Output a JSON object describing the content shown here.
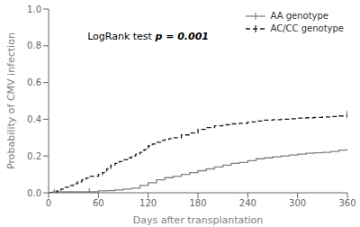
{
  "chart_data": {
    "type": "line",
    "xlabel": "Days after transplantation",
    "ylabel": "Probability of CMV infection",
    "xlim": [
      0,
      360
    ],
    "ylim": [
      0,
      1.0
    ],
    "xticks": [
      0,
      60,
      120,
      180,
      240,
      300,
      360
    ],
    "yticks": [
      {
        "value": 0,
        "label": "0.0"
      },
      0.2,
      0.4,
      0.6,
      0.8,
      {
        "value": 1,
        "label": "1.0"
      }
    ],
    "legend": "upper right",
    "annotations": [
      "LogRank test",
      "p = 0.001"
    ],
    "series": [
      {
        "name": "AA genotype",
        "color": "#808080",
        "line_style": "solid",
        "marker": "vline",
        "x": [
          0,
          5,
          10,
          15,
          20,
          25,
          30,
          35,
          40,
          45,
          50,
          55,
          60,
          65,
          70,
          80,
          90,
          100,
          110,
          120,
          130,
          140,
          150,
          160,
          170,
          180,
          190,
          200,
          210,
          220,
          230,
          240,
          250,
          260,
          270,
          280,
          290,
          300,
          310,
          320,
          330,
          340,
          350,
          360
        ],
        "values": [
          0,
          0.005,
          0.005,
          0.005,
          0.005,
          0.005,
          0.005,
          0.005,
          0.005,
          0.005,
          0.005,
          0.005,
          0.01,
          0.01,
          0.012,
          0.015,
          0.02,
          0.025,
          0.04,
          0.055,
          0.07,
          0.082,
          0.09,
          0.1,
          0.11,
          0.12,
          0.13,
          0.14,
          0.15,
          0.16,
          0.165,
          0.175,
          0.185,
          0.19,
          0.195,
          0.2,
          0.205,
          0.21,
          0.215,
          0.218,
          0.22,
          0.225,
          0.232,
          0.24
        ],
        "censor_x": [
          7,
          49
        ],
        "censor_values": [
          0.0,
          0.005
        ]
      },
      {
        "name": "AC/CC genotype",
        "color": "#1a1a1a",
        "line_style": "dashed",
        "marker": "vline",
        "x": [
          0,
          5,
          10,
          15,
          20,
          25,
          30,
          35,
          40,
          45,
          50,
          55,
          60,
          65,
          70,
          75,
          80,
          85,
          90,
          95,
          100,
          105,
          110,
          115,
          120,
          125,
          130,
          135,
          140,
          145,
          150,
          160,
          170,
          180,
          190,
          200,
          210,
          220,
          230,
          240,
          250,
          260,
          270,
          280,
          290,
          300,
          310,
          320,
          330,
          340,
          350,
          360
        ],
        "values": [
          0,
          0,
          0.01,
          0.02,
          0.03,
          0.04,
          0.05,
          0.06,
          0.07,
          0.08,
          0.09,
          0.09,
          0.1,
          0.11,
          0.13,
          0.15,
          0.16,
          0.17,
          0.18,
          0.19,
          0.2,
          0.21,
          0.22,
          0.235,
          0.255,
          0.265,
          0.275,
          0.285,
          0.29,
          0.295,
          0.3,
          0.315,
          0.325,
          0.345,
          0.355,
          0.365,
          0.37,
          0.375,
          0.378,
          0.385,
          0.39,
          0.395,
          0.398,
          0.4,
          0.403,
          0.406,
          0.408,
          0.41,
          0.412,
          0.415,
          0.418,
          0.425
        ],
        "censor_x": [
          360
        ],
        "censor_values": [
          0.425
        ]
      }
    ]
  }
}
